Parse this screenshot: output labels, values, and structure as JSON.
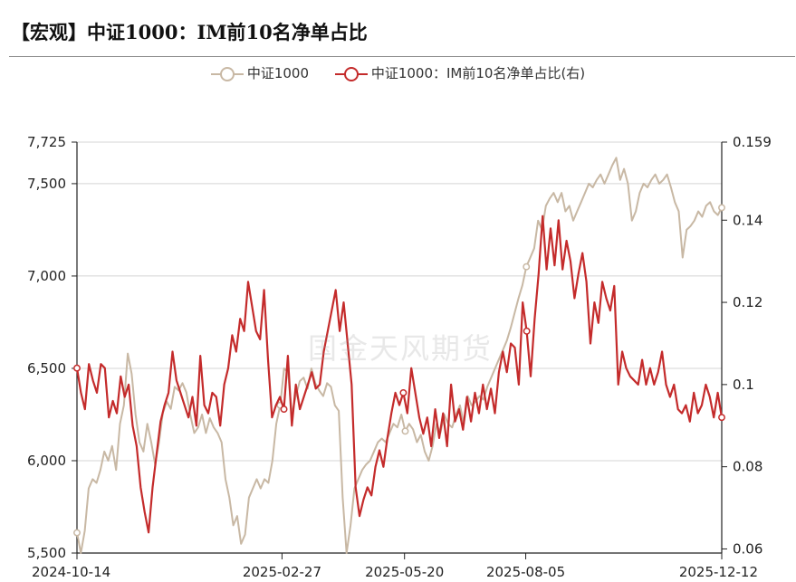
{
  "header": {
    "title": "【宏观】中证1000：IM前10名净单占比"
  },
  "watermark": "国金天风期货",
  "colors": {
    "index": "#c8b8a4",
    "ratio": "#c42b2b"
  },
  "chart_data": {
    "type": "line",
    "title": "【宏观】中证1000：IM前10名净单占比",
    "x_tick_labels": [
      "2024-10-14",
      "2025-02-27",
      "2025-05-20",
      "2025-08-05",
      "2025-12-12"
    ],
    "y_left": {
      "ticks": [
        "5,500",
        "6,000",
        "6,500",
        "7,000",
        "7,500",
        "7,725"
      ],
      "range": [
        5500,
        7725
      ]
    },
    "y_right": {
      "ticks": [
        "0.06",
        "0.08",
        "0.1",
        "0.12",
        "0.14",
        "0.159"
      ],
      "range": [
        0.059,
        0.159
      ]
    },
    "grid": true,
    "legend_position": "top",
    "series": [
      {
        "name": "中证1000",
        "axis": "left",
        "color": "#c8b8a4",
        "values": [
          5610,
          5500,
          5620,
          5850,
          5900,
          5880,
          5950,
          6050,
          6000,
          6080,
          5950,
          6200,
          6300,
          6580,
          6470,
          6250,
          6100,
          6050,
          6200,
          6100,
          5980,
          6100,
          6260,
          6320,
          6280,
          6400,
          6380,
          6420,
          6370,
          6250,
          6150,
          6180,
          6250,
          6150,
          6230,
          6180,
          6150,
          6100,
          5900,
          5800,
          5650,
          5700,
          5550,
          5600,
          5800,
          5850,
          5900,
          5850,
          5900,
          5880,
          6000,
          6200,
          6300,
          6500,
          6480,
          6250,
          6350,
          6430,
          6450,
          6390,
          6500,
          6420,
          6380,
          6350,
          6420,
          6400,
          6300,
          6270,
          5800,
          5500,
          5650,
          5850,
          5900,
          5950,
          5980,
          6000,
          6050,
          6100,
          6120,
          6100,
          6150,
          6200,
          6180,
          6250,
          6160,
          6200,
          6170,
          6100,
          6140,
          6050,
          6000,
          6080,
          6200,
          6150,
          6250,
          6200,
          6180,
          6250,
          6300,
          6200,
          6350,
          6300,
          6320,
          6350,
          6330,
          6400,
          6450,
          6500,
          6550,
          6600,
          6650,
          6720,
          6800,
          6880,
          6950,
          7050,
          7100,
          7150,
          7300,
          7250,
          7380,
          7420,
          7450,
          7400,
          7450,
          7350,
          7380,
          7300,
          7350,
          7400,
          7450,
          7500,
          7480,
          7520,
          7550,
          7500,
          7550,
          7600,
          7640,
          7520,
          7580,
          7500,
          7300,
          7350,
          7450,
          7500,
          7480,
          7520,
          7550,
          7500,
          7520,
          7550,
          7480,
          7400,
          7350,
          7100,
          7250,
          7270,
          7300,
          7350,
          7320,
          7380,
          7400,
          7350,
          7330,
          7370
        ]
      },
      {
        "name": "中证1000：IM前10名净单占比(右)",
        "axis": "right",
        "color": "#c42b2b",
        "values": [
          0.104,
          0.098,
          0.094,
          0.105,
          0.101,
          0.098,
          0.105,
          0.104,
          0.092,
          0.096,
          0.093,
          0.102,
          0.097,
          0.1,
          0.09,
          0.085,
          0.075,
          0.069,
          0.064,
          0.075,
          0.083,
          0.091,
          0.095,
          0.098,
          0.108,
          0.101,
          0.098,
          0.095,
          0.092,
          0.097,
          0.09,
          0.107,
          0.095,
          0.093,
          0.098,
          0.097,
          0.09,
          0.1,
          0.104,
          0.112,
          0.108,
          0.116,
          0.113,
          0.125,
          0.119,
          0.113,
          0.111,
          0.123,
          0.106,
          0.092,
          0.095,
          0.097,
          0.094,
          0.107,
          0.09,
          0.1,
          0.094,
          0.097,
          0.1,
          0.103,
          0.099,
          0.1,
          0.108,
          0.113,
          0.118,
          0.123,
          0.113,
          0.12,
          0.11,
          0.1,
          0.075,
          0.068,
          0.072,
          0.075,
          0.073,
          0.08,
          0.084,
          0.08,
          0.087,
          0.093,
          0.098,
          0.095,
          0.098,
          0.093,
          0.104,
          0.098,
          0.092,
          0.088,
          0.092,
          0.085,
          0.094,
          0.087,
          0.093,
          0.085,
          0.1,
          0.091,
          0.094,
          0.089,
          0.097,
          0.091,
          0.098,
          0.093,
          0.1,
          0.094,
          0.099,
          0.093,
          0.103,
          0.108,
          0.103,
          0.11,
          0.109,
          0.1,
          0.12,
          0.113,
          0.102,
          0.116,
          0.127,
          0.141,
          0.128,
          0.138,
          0.129,
          0.14,
          0.128,
          0.135,
          0.13,
          0.121,
          0.127,
          0.132,
          0.125,
          0.11,
          0.12,
          0.115,
          0.125,
          0.121,
          0.118,
          0.124,
          0.1,
          0.108,
          0.104,
          0.102,
          0.101,
          0.1,
          0.106,
          0.1,
          0.104,
          0.1,
          0.103,
          0.108,
          0.1,
          0.097,
          0.1,
          0.094,
          0.093,
          0.095,
          0.091,
          0.098,
          0.093,
          0.095,
          0.1,
          0.097,
          0.092,
          0.098,
          0.092
        ]
      }
    ]
  }
}
